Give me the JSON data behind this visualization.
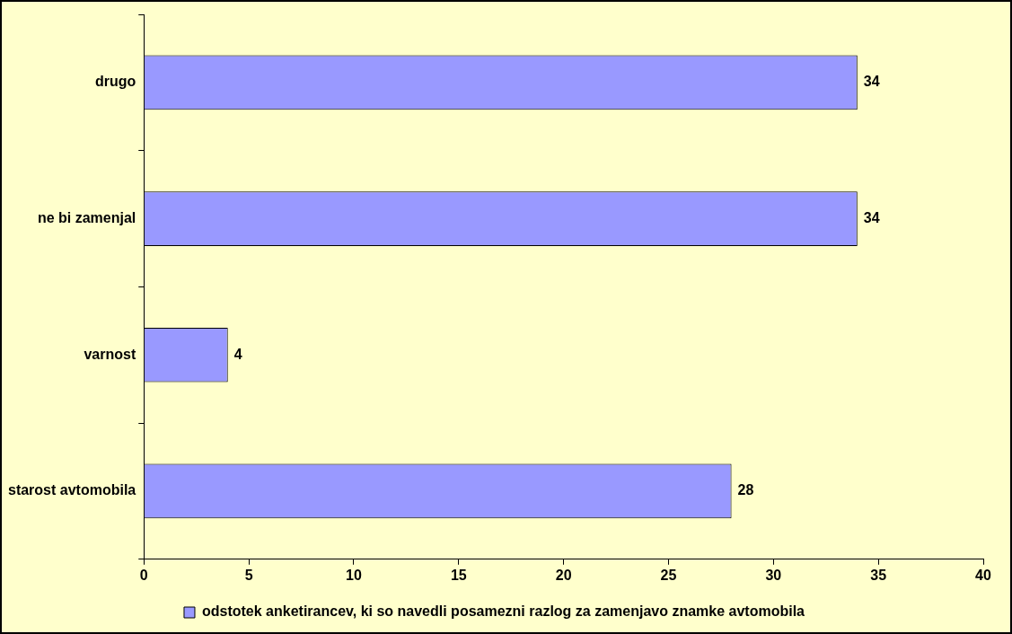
{
  "chart_data": {
    "type": "bar",
    "orientation": "horizontal",
    "categories": [
      "drugo",
      "ne bi zamenjal",
      "varnost",
      "starost avtomobila"
    ],
    "series": [
      {
        "name": "odstotek anketirancev, ki so navedli posamezni razlog za zamenjavo znamke avtomobila",
        "color": "#9999ff",
        "values": [
          34,
          34,
          4,
          28
        ]
      }
    ],
    "xlim": [
      0,
      40
    ],
    "xticks": [
      0,
      5,
      10,
      15,
      20,
      25,
      30,
      35,
      40
    ],
    "data_labels": true,
    "grid": false,
    "legend": "bottom"
  }
}
